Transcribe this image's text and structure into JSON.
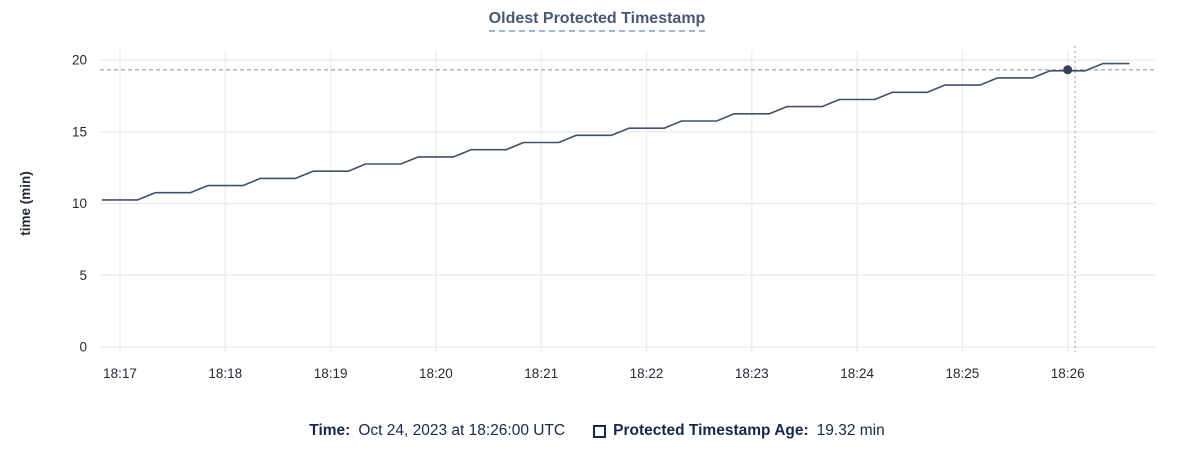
{
  "title": {
    "text": "Oldest Protected Timestamp"
  },
  "chart_data": {
    "type": "line",
    "title": "Oldest Protected Timestamp",
    "xlabel": "",
    "ylabel": "time (min)",
    "ylim": [
      0,
      20
    ],
    "yticks": [
      0,
      5,
      10,
      15,
      20
    ],
    "xlim_minutes_from_1817": [
      -0.19,
      9.83
    ],
    "grid": true,
    "legend_position": "bottom",
    "xticks": [
      {
        "t": 0,
        "label": "18:17"
      },
      {
        "t": 1,
        "label": "18:18"
      },
      {
        "t": 2,
        "label": "18:19"
      },
      {
        "t": 3,
        "label": "18:20"
      },
      {
        "t": 4,
        "label": "18:21"
      },
      {
        "t": 5,
        "label": "18:22"
      },
      {
        "t": 6,
        "label": "18:23"
      },
      {
        "t": 7,
        "label": "18:24"
      },
      {
        "t": 8,
        "label": "18:25"
      },
      {
        "t": 9,
        "label": "18:26"
      }
    ],
    "series": [
      {
        "name": "Protected Timestamp Age",
        "unit": "min",
        "points": [
          [
            -0.167,
            10.25
          ],
          [
            0.167,
            10.25
          ],
          [
            0.333,
            10.75
          ],
          [
            0.667,
            10.75
          ],
          [
            0.833,
            11.25
          ],
          [
            1.167,
            11.25
          ],
          [
            1.333,
            11.75
          ],
          [
            1.667,
            11.75
          ],
          [
            1.833,
            12.25
          ],
          [
            2.167,
            12.25
          ],
          [
            2.333,
            12.75
          ],
          [
            2.667,
            12.75
          ],
          [
            2.833,
            13.25
          ],
          [
            3.167,
            13.25
          ],
          [
            3.333,
            13.75
          ],
          [
            3.667,
            13.75
          ],
          [
            3.833,
            14.25
          ],
          [
            4.167,
            14.25
          ],
          [
            4.333,
            14.75
          ],
          [
            4.667,
            14.75
          ],
          [
            4.833,
            15.25
          ],
          [
            5.167,
            15.25
          ],
          [
            5.333,
            15.75
          ],
          [
            5.667,
            15.75
          ],
          [
            5.833,
            16.25
          ],
          [
            6.167,
            16.25
          ],
          [
            6.333,
            16.75
          ],
          [
            6.667,
            16.75
          ],
          [
            6.833,
            17.25
          ],
          [
            7.167,
            17.25
          ],
          [
            7.333,
            17.75
          ],
          [
            7.667,
            17.75
          ],
          [
            7.833,
            18.25
          ],
          [
            8.167,
            18.25
          ],
          [
            8.333,
            18.75
          ],
          [
            8.667,
            18.75
          ],
          [
            8.833,
            19.25
          ],
          [
            9.167,
            19.25
          ],
          [
            9.333,
            19.75
          ],
          [
            9.58,
            19.75
          ]
        ]
      }
    ],
    "hover": {
      "t": 9.0,
      "crosshair_t": 9.07,
      "value": 19.32,
      "time": "Oct 24, 2023 at 18:26:00 UTC"
    }
  },
  "footer": {
    "time_label": "Time:",
    "time_value": "Oct 24, 2023 at 18:26:00 UTC",
    "series_label": "Protected Timestamp Age:",
    "series_value": "19.32 min"
  },
  "colors": {
    "background": "#ffffff",
    "line": "#43506c",
    "dot": "#36415c",
    "crosshair": "#a6b5c0",
    "grid": "#ededed",
    "title": "#475872",
    "title_underline": "#a2b5ca",
    "tick_label": "#242a35",
    "axis_label": "#242a35",
    "footer_text": "#16294b"
  }
}
